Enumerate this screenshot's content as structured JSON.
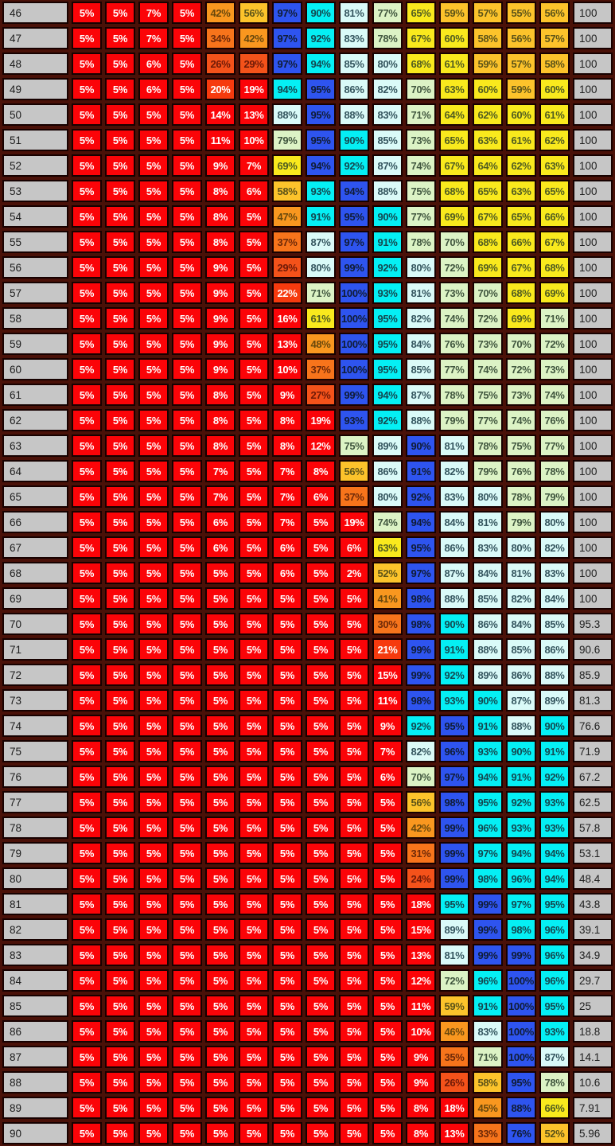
{
  "chart_data": {
    "type": "heatmap",
    "title": "",
    "description_visible_text_only": true,
    "grid": {
      "gridlines": "dark maroon with black cell outlines",
      "legend": "none",
      "column_headers": "none visible"
    },
    "colormap": {
      "note_bands_by_percent_value": true,
      "bands": [
        {
          "max": 19,
          "bg": "#FB0408",
          "text": "#FFFFFF"
        },
        {
          "max": 23,
          "bg": "#F63A0E",
          "text": "#FFFFFF"
        },
        {
          "max": 29,
          "bg": "#F4521A",
          "text": "#6F1A07"
        },
        {
          "max": 38,
          "bg": "#F7741B",
          "text": "#6F2A08"
        },
        {
          "max": 49,
          "bg": "#F9971F",
          "text": "#69480C"
        },
        {
          "max": 59,
          "bg": "#FCC32B",
          "text": "#5D5418"
        },
        {
          "max": 69,
          "bg": "#F9E91D",
          "text": "#515D20"
        },
        {
          "max": 79,
          "bg": "#DCF3C5",
          "text": "#41573F"
        },
        {
          "max": 89,
          "bg": "#DAFAF8",
          "text": "#35565F"
        },
        {
          "max": 100,
          "bg": "#05EFF4",
          "text": "#134850"
        }
      ],
      "row_max_bg": "#2E54EF",
      "row_max_text": "#101C35",
      "row_header_bg": "#C6C6C6",
      "row_header_text": "#1C1C1C",
      "grid_background": "#4A1108",
      "cell_border": "#170100"
    },
    "rows": [
      {
        "label": "46",
        "values": [
          5,
          5,
          7,
          5,
          42,
          56,
          97,
          90,
          81,
          77,
          65,
          59,
          57,
          55,
          56
        ],
        "right": "100"
      },
      {
        "label": "47",
        "values": [
          5,
          5,
          7,
          5,
          34,
          42,
          97,
          92,
          83,
          78,
          67,
          60,
          58,
          56,
          57
        ],
        "right": "100"
      },
      {
        "label": "48",
        "values": [
          5,
          5,
          6,
          5,
          26,
          29,
          97,
          94,
          85,
          80,
          68,
          61,
          59,
          57,
          58
        ],
        "right": "100"
      },
      {
        "label": "49",
        "values": [
          5,
          5,
          6,
          5,
          20,
          19,
          94,
          95,
          86,
          82,
          70,
          63,
          60,
          59,
          60
        ],
        "right": "100"
      },
      {
        "label": "50",
        "values": [
          5,
          5,
          5,
          5,
          14,
          13,
          88,
          95,
          88,
          83,
          71,
          64,
          62,
          60,
          61
        ],
        "right": "100"
      },
      {
        "label": "51",
        "values": [
          5,
          5,
          5,
          5,
          11,
          10,
          79,
          95,
          90,
          85,
          73,
          65,
          63,
          61,
          62
        ],
        "right": "100"
      },
      {
        "label": "52",
        "values": [
          5,
          5,
          5,
          5,
          9,
          7,
          69,
          94,
          92,
          87,
          74,
          67,
          64,
          62,
          63
        ],
        "right": "100"
      },
      {
        "label": "53",
        "values": [
          5,
          5,
          5,
          5,
          8,
          6,
          58,
          93,
          94,
          88,
          75,
          68,
          65,
          63,
          65
        ],
        "right": "100"
      },
      {
        "label": "54",
        "values": [
          5,
          5,
          5,
          5,
          8,
          5,
          47,
          91,
          95,
          90,
          77,
          69,
          67,
          65,
          66
        ],
        "right": "100"
      },
      {
        "label": "55",
        "values": [
          5,
          5,
          5,
          5,
          8,
          5,
          37,
          87,
          97,
          91,
          78,
          70,
          68,
          66,
          67
        ],
        "right": "100"
      },
      {
        "label": "56",
        "values": [
          5,
          5,
          5,
          5,
          9,
          5,
          29,
          80,
          99,
          92,
          80,
          72,
          69,
          67,
          68
        ],
        "right": "100"
      },
      {
        "label": "57",
        "values": [
          5,
          5,
          5,
          5,
          9,
          5,
          22,
          71,
          100,
          93,
          81,
          73,
          70,
          68,
          69
        ],
        "right": "100"
      },
      {
        "label": "58",
        "values": [
          5,
          5,
          5,
          5,
          9,
          5,
          16,
          61,
          100,
          95,
          82,
          74,
          72,
          69,
          71
        ],
        "right": "100"
      },
      {
        "label": "59",
        "values": [
          5,
          5,
          5,
          5,
          9,
          5,
          13,
          48,
          100,
          95,
          84,
          76,
          73,
          70,
          72
        ],
        "right": "100"
      },
      {
        "label": "60",
        "values": [
          5,
          5,
          5,
          5,
          9,
          5,
          10,
          37,
          100,
          95,
          85,
          77,
          74,
          72,
          73
        ],
        "right": "100"
      },
      {
        "label": "61",
        "values": [
          5,
          5,
          5,
          5,
          8,
          5,
          9,
          27,
          99,
          94,
          87,
          78,
          75,
          73,
          74
        ],
        "right": "100"
      },
      {
        "label": "62",
        "values": [
          5,
          5,
          5,
          5,
          8,
          5,
          8,
          19,
          93,
          92,
          88,
          79,
          77,
          74,
          76
        ],
        "right": "100"
      },
      {
        "label": "63",
        "values": [
          5,
          5,
          5,
          5,
          8,
          5,
          8,
          12,
          75,
          89,
          90,
          81,
          78,
          75,
          77
        ],
        "right": "100"
      },
      {
        "label": "64",
        "values": [
          5,
          5,
          5,
          5,
          7,
          5,
          7,
          8,
          56,
          86,
          91,
          82,
          79,
          76,
          78
        ],
        "right": "100"
      },
      {
        "label": "65",
        "values": [
          5,
          5,
          5,
          5,
          7,
          5,
          7,
          6,
          37,
          80,
          92,
          83,
          80,
          78,
          79
        ],
        "right": "100"
      },
      {
        "label": "66",
        "values": [
          5,
          5,
          5,
          5,
          6,
          5,
          7,
          5,
          19,
          74,
          94,
          84,
          81,
          79,
          80
        ],
        "right": "100"
      },
      {
        "label": "67",
        "values": [
          5,
          5,
          5,
          5,
          6,
          5,
          6,
          5,
          6,
          63,
          95,
          86,
          83,
          80,
          82
        ],
        "right": "100"
      },
      {
        "label": "68",
        "values": [
          5,
          5,
          5,
          5,
          5,
          5,
          6,
          5,
          2,
          52,
          97,
          87,
          84,
          81,
          83
        ],
        "right": "100"
      },
      {
        "label": "69",
        "values": [
          5,
          5,
          5,
          5,
          5,
          5,
          5,
          5,
          5,
          41,
          98,
          88,
          85,
          82,
          84
        ],
        "right": "100"
      },
      {
        "label": "70",
        "values": [
          5,
          5,
          5,
          5,
          5,
          5,
          5,
          5,
          5,
          30,
          98,
          90,
          86,
          84,
          85
        ],
        "right": "95.3"
      },
      {
        "label": "71",
        "values": [
          5,
          5,
          5,
          5,
          5,
          5,
          5,
          5,
          5,
          21,
          99,
          91,
          88,
          85,
          86
        ],
        "right": "90.6"
      },
      {
        "label": "72",
        "values": [
          5,
          5,
          5,
          5,
          5,
          5,
          5,
          5,
          5,
          15,
          99,
          92,
          89,
          86,
          88
        ],
        "right": "85.9"
      },
      {
        "label": "73",
        "values": [
          5,
          5,
          5,
          5,
          5,
          5,
          5,
          5,
          5,
          11,
          98,
          93,
          90,
          87,
          89
        ],
        "right": "81.3"
      },
      {
        "label": "74",
        "values": [
          5,
          5,
          5,
          5,
          5,
          5,
          5,
          5,
          5,
          9,
          92,
          95,
          91,
          88,
          90
        ],
        "right": "76.6"
      },
      {
        "label": "75",
        "values": [
          5,
          5,
          5,
          5,
          5,
          5,
          5,
          5,
          5,
          7,
          82,
          96,
          93,
          90,
          91
        ],
        "right": "71.9"
      },
      {
        "label": "76",
        "values": [
          5,
          5,
          5,
          5,
          5,
          5,
          5,
          5,
          5,
          6,
          70,
          97,
          94,
          91,
          92
        ],
        "right": "67.2"
      },
      {
        "label": "77",
        "values": [
          5,
          5,
          5,
          5,
          5,
          5,
          5,
          5,
          5,
          5,
          56,
          98,
          95,
          92,
          93
        ],
        "right": "62.5"
      },
      {
        "label": "78",
        "values": [
          5,
          5,
          5,
          5,
          5,
          5,
          5,
          5,
          5,
          5,
          42,
          99,
          96,
          93,
          93
        ],
        "right": "57.8"
      },
      {
        "label": "79",
        "values": [
          5,
          5,
          5,
          5,
          5,
          5,
          5,
          5,
          5,
          5,
          31,
          99,
          97,
          94,
          94
        ],
        "right": "53.1"
      },
      {
        "label": "80",
        "values": [
          5,
          5,
          5,
          5,
          5,
          5,
          5,
          5,
          5,
          5,
          24,
          99,
          98,
          96,
          94
        ],
        "right": "48.4"
      },
      {
        "label": "81",
        "values": [
          5,
          5,
          5,
          5,
          5,
          5,
          5,
          5,
          5,
          5,
          18,
          95,
          99,
          97,
          95
        ],
        "right": "43.8"
      },
      {
        "label": "82",
        "values": [
          5,
          5,
          5,
          5,
          5,
          5,
          5,
          5,
          5,
          5,
          15,
          89,
          99,
          98,
          96
        ],
        "right": "39.1"
      },
      {
        "label": "83",
        "values": [
          5,
          5,
          5,
          5,
          5,
          5,
          5,
          5,
          5,
          5,
          13,
          81,
          99,
          99,
          96
        ],
        "right": "34.9"
      },
      {
        "label": "84",
        "values": [
          5,
          5,
          5,
          5,
          5,
          5,
          5,
          5,
          5,
          5,
          12,
          72,
          96,
          100,
          96
        ],
        "right": "29.7"
      },
      {
        "label": "85",
        "values": [
          5,
          5,
          5,
          5,
          5,
          5,
          5,
          5,
          5,
          5,
          11,
          59,
          91,
          100,
          95
        ],
        "right": "25"
      },
      {
        "label": "86",
        "values": [
          5,
          5,
          5,
          5,
          5,
          5,
          5,
          5,
          5,
          5,
          10,
          46,
          83,
          100,
          93
        ],
        "right": "18.8"
      },
      {
        "label": "87",
        "values": [
          5,
          5,
          5,
          5,
          5,
          5,
          5,
          5,
          5,
          5,
          9,
          35,
          71,
          100,
          87
        ],
        "right": "14.1"
      },
      {
        "label": "88",
        "values": [
          5,
          5,
          5,
          5,
          5,
          5,
          5,
          5,
          5,
          5,
          9,
          26,
          58,
          95,
          78
        ],
        "right": "10.6"
      },
      {
        "label": "89",
        "values": [
          5,
          5,
          5,
          5,
          5,
          5,
          5,
          5,
          5,
          5,
          8,
          18,
          45,
          88,
          66
        ],
        "right": "7.91"
      },
      {
        "label": "90",
        "values": [
          5,
          5,
          5,
          5,
          5,
          5,
          5,
          5,
          5,
          5,
          8,
          13,
          33,
          76,
          52
        ],
        "right": "5.96"
      }
    ]
  }
}
